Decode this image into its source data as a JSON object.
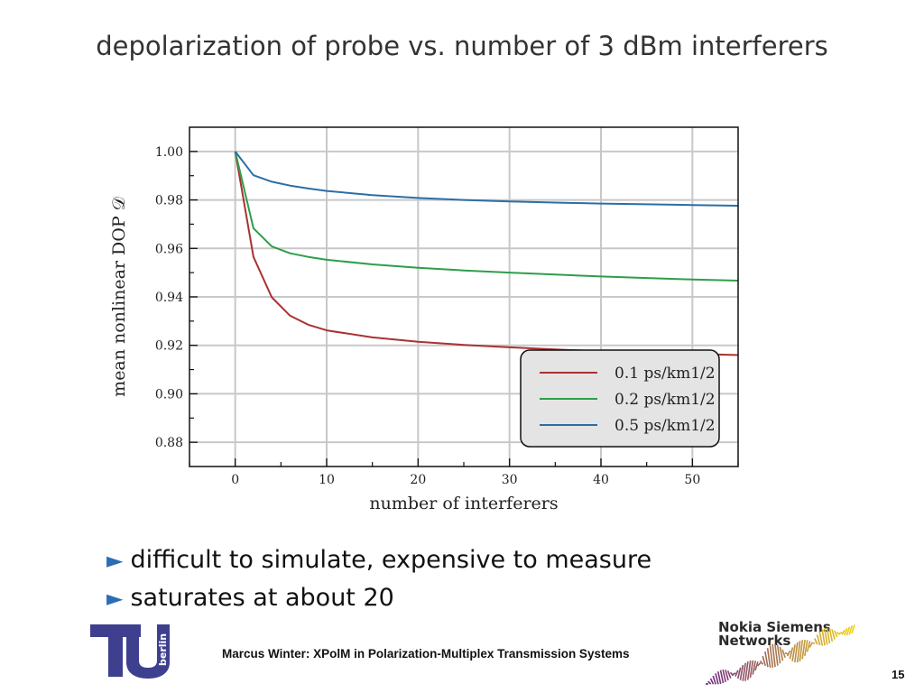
{
  "slide": {
    "title": "depolarization of probe vs. number of 3 dBm interferers",
    "bullets": [
      "difficult to simulate, expensive to measure",
      "saturates at about 20"
    ],
    "bullet_marker": "►",
    "footer": "Marcus Winter: XPolM in Polarization-Multiplex Transmission Systems",
    "page_number": "15",
    "tu_logo_label": "berlin",
    "nsn_logo_text": [
      "Nokia Siemens",
      "Networks"
    ]
  },
  "chart_data": {
    "type": "line",
    "xlabel": "number of interferers",
    "ylabel": "mean nonlinear DOP 𝒟",
    "xlim": [
      -5,
      55
    ],
    "ylim": [
      0.87,
      1.01
    ],
    "xticks": [
      0,
      10,
      20,
      30,
      40,
      50
    ],
    "yticks": [
      0.88,
      0.9,
      0.92,
      0.94,
      0.96,
      0.98,
      1.0
    ],
    "ytick_labels": [
      "0.88",
      "0.90",
      "0.92",
      "0.94",
      "0.96",
      "0.98",
      "1.00"
    ],
    "grid": true,
    "legend_position": "bottom-right",
    "x": [
      0,
      2,
      4,
      6,
      8,
      10,
      15,
      20,
      25,
      30,
      35,
      40,
      45,
      50,
      55
    ],
    "series": [
      {
        "name": "0.1 ps/km1/2",
        "color": "#a83232",
        "values": [
          1.0,
          0.9565,
          0.9398,
          0.9322,
          0.9285,
          0.9262,
          0.9233,
          0.9215,
          0.9202,
          0.9192,
          0.9183,
          0.9176,
          0.917,
          0.9165,
          0.916
        ]
      },
      {
        "name": "0.2 ps/km1/2",
        "color": "#2e9e4a",
        "values": [
          1.0,
          0.9683,
          0.9608,
          0.958,
          0.9565,
          0.9553,
          0.9534,
          0.952,
          0.9509,
          0.95,
          0.9492,
          0.9484,
          0.9478,
          0.9472,
          0.9467
        ]
      },
      {
        "name": "0.5 ps/km1/2",
        "color": "#2b6ea6",
        "values": [
          1.0,
          0.9902,
          0.9875,
          0.9859,
          0.9847,
          0.9837,
          0.982,
          0.9808,
          0.98,
          0.9794,
          0.9789,
          0.9785,
          0.9782,
          0.9779,
          0.9776
        ]
      }
    ]
  }
}
